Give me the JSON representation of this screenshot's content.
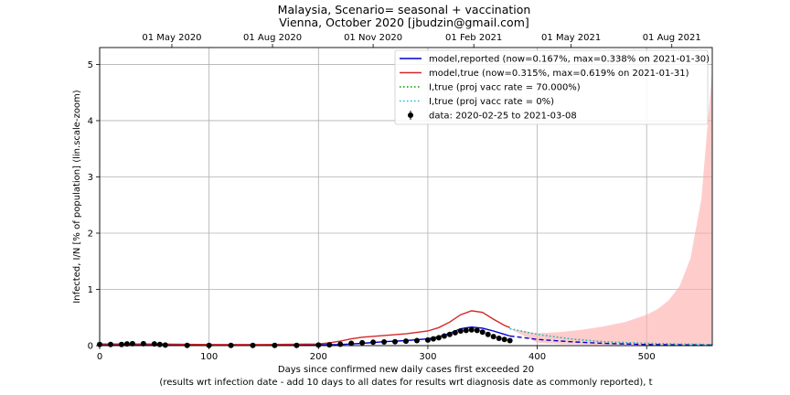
{
  "chart_data": {
    "type": "line",
    "title": "Malaysia, Scenario= seasonal + vaccination",
    "subtitle": "Vienna, October 2020 [jbudzin@gmail.com]",
    "xlabel": "Days since confirmed new daily cases first exceeded 20",
    "xlabel2": "(results wrt infection date - add 10 days to all dates for results wrt diagnosis date as commonly reported), t",
    "ylabel": "Infected, I/N [% of population] (lin.scale-zoom)",
    "xlim": [
      0,
      560
    ],
    "ylim": [
      0,
      5.3
    ],
    "grid": true,
    "legend_position": "top-right",
    "x_ticks": [
      0,
      100,
      200,
      300,
      400,
      500
    ],
    "x_tick_labels": [
      "0",
      "100",
      "200",
      "300",
      "400",
      "500"
    ],
    "y_ticks": [
      0,
      1,
      2,
      3,
      4,
      5
    ],
    "y_tick_labels": [
      "0",
      "1",
      "2",
      "3",
      "4",
      "5"
    ],
    "top_axis_ticks": [
      {
        "x": 66,
        "label": "01 May 2020"
      },
      {
        "x": 158,
        "label": "01 Aug 2020"
      },
      {
        "x": 250,
        "label": "01 Nov 2020"
      },
      {
        "x": 342,
        "label": "01 Feb 2021"
      },
      {
        "x": 431,
        "label": "01 May 2021"
      },
      {
        "x": 523,
        "label": "01 Aug 2021"
      }
    ],
    "legend": [
      {
        "label": "model,reported (now=0.167%, max=0.338% on 2021-01-30)",
        "color": "#0000cc",
        "style": "solid"
      },
      {
        "label": "model,true (now=0.315%, max=0.619% on 2021-01-31)",
        "color": "#d62728",
        "style": "solid"
      },
      {
        "label": "I,true (proj vacc rate = 70.000%)",
        "color": "#009900",
        "style": "dotted"
      },
      {
        "label": "I,true (proj vacc rate = 0%)",
        "color": "#17becf",
        "style": "dotted"
      },
      {
        "label": "data: 2020-02-25 to 2021-03-08",
        "color": "#000000",
        "style": "marker"
      }
    ],
    "series": [
      {
        "name": "model,reported",
        "color": "#0000cc",
        "x": [
          0,
          50,
          100,
          150,
          200,
          220,
          240,
          260,
          280,
          300,
          310,
          320,
          330,
          340,
          350,
          360,
          370,
          375
        ],
        "y": [
          0.02,
          0.02,
          0.015,
          0.015,
          0.015,
          0.02,
          0.04,
          0.07,
          0.09,
          0.12,
          0.16,
          0.22,
          0.3,
          0.33,
          0.31,
          0.26,
          0.2,
          0.17
        ]
      },
      {
        "name": "model,reported (projection)",
        "color": "#0000cc",
        "dashed": true,
        "x": [
          375,
          400,
          430,
          460,
          500,
          530,
          560
        ],
        "y": [
          0.17,
          0.11,
          0.07,
          0.04,
          0.02,
          0.015,
          0.01
        ]
      },
      {
        "name": "model,true",
        "color": "#d62728",
        "x": [
          0,
          50,
          100,
          150,
          200,
          210,
          220,
          230,
          240,
          260,
          280,
          300,
          310,
          320,
          330,
          340,
          350,
          360,
          370,
          375
        ],
        "y": [
          0.03,
          0.03,
          0.02,
          0.02,
          0.03,
          0.05,
          0.08,
          0.12,
          0.15,
          0.18,
          0.21,
          0.26,
          0.32,
          0.42,
          0.55,
          0.62,
          0.59,
          0.47,
          0.36,
          0.32
        ]
      },
      {
        "name": "I,true (proj vacc rate = 70.000%)",
        "color": "#009900",
        "dotted": true,
        "x": [
          375,
          400,
          430,
          460,
          500,
          530,
          560
        ],
        "y": [
          0.3,
          0.2,
          0.12,
          0.07,
          0.04,
          0.03,
          0.02
        ]
      },
      {
        "name": "I,true (proj vacc rate = 0%)",
        "color": "#17becf",
        "dotted": true,
        "x": [
          375,
          400,
          430,
          460,
          500,
          530,
          560
        ],
        "y": [
          0.3,
          0.2,
          0.12,
          0.07,
          0.04,
          0.03,
          0.02
        ]
      }
    ],
    "band": {
      "color": "#ffaaaa",
      "x": [
        375,
        400,
        420,
        440,
        460,
        480,
        500,
        510,
        520,
        530,
        540,
        550,
        560
      ],
      "upper": [
        0.3,
        0.22,
        0.24,
        0.28,
        0.34,
        0.42,
        0.55,
        0.65,
        0.8,
        1.05,
        1.55,
        2.6,
        4.9
      ],
      "lower": [
        0.3,
        0.05,
        0.03,
        0.02,
        0.015,
        0.01,
        0.01,
        0.01,
        0.01,
        0.01,
        0.01,
        0.01,
        0.01
      ]
    },
    "data_points": {
      "color": "#000000",
      "x": [
        0,
        10,
        20,
        25,
        30,
        40,
        50,
        55,
        60,
        80,
        100,
        120,
        140,
        160,
        180,
        200,
        210,
        220,
        230,
        240,
        250,
        260,
        270,
        280,
        290,
        300,
        305,
        310,
        315,
        320,
        325,
        330,
        335,
        340,
        345,
        350,
        355,
        360,
        365,
        370,
        375
      ],
      "y": [
        0.02,
        0.02,
        0.02,
        0.03,
        0.035,
        0.035,
        0.03,
        0.02,
        0.01,
        0.005,
        0.005,
        0.005,
        0.005,
        0.005,
        0.005,
        0.01,
        0.015,
        0.025,
        0.04,
        0.05,
        0.06,
        0.065,
        0.07,
        0.08,
        0.09,
        0.1,
        0.12,
        0.14,
        0.17,
        0.2,
        0.23,
        0.26,
        0.27,
        0.28,
        0.27,
        0.24,
        0.2,
        0.16,
        0.13,
        0.11,
        0.09
      ]
    }
  }
}
